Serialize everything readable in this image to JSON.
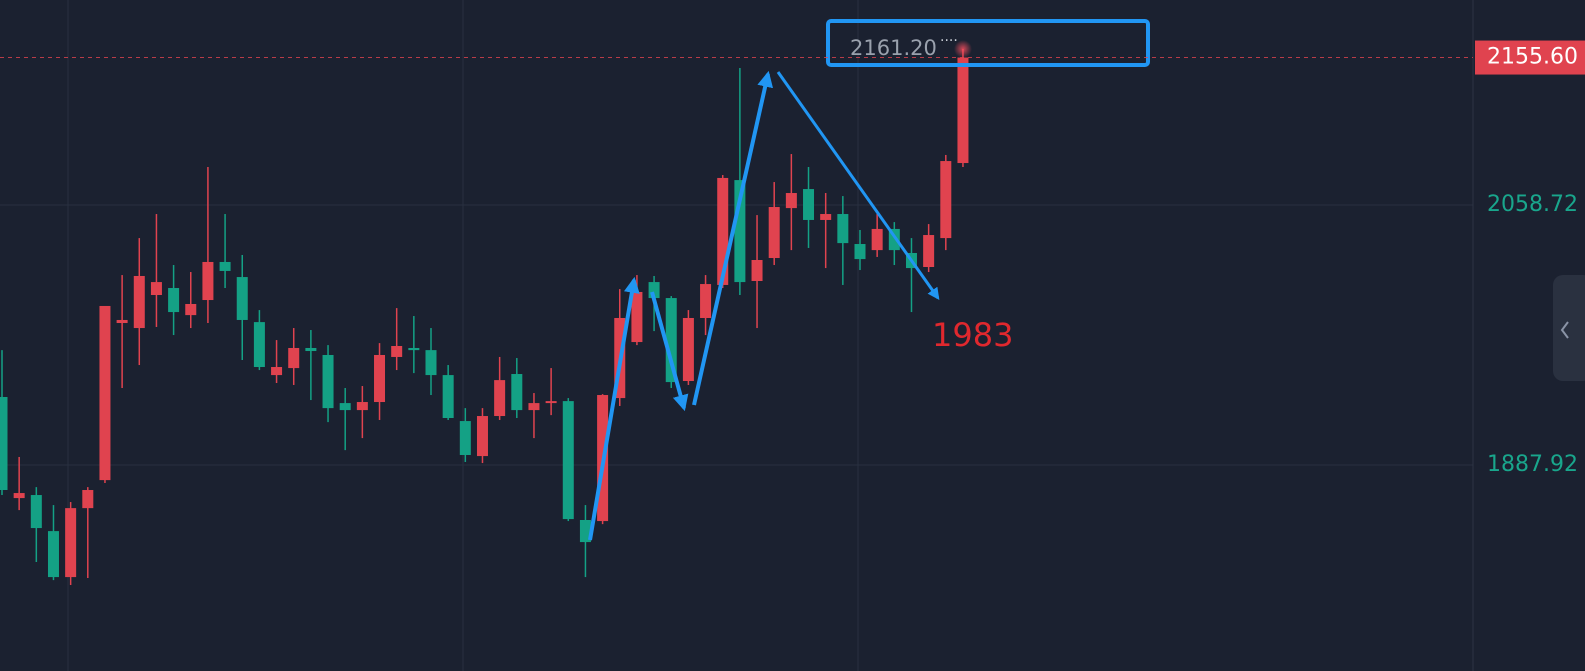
{
  "chart_data": {
    "type": "candlestick",
    "ylim": [
      1752.6,
      2193.4
    ],
    "yticks": [
      1887.92,
      2058.72
    ],
    "grid": true,
    "up_color": "#e0434f",
    "down_color": "#14a185",
    "tick_color": "#19a68c",
    "last_price": {
      "value": 2155.6,
      "label": "2155.60"
    },
    "high_label": {
      "value": 2161.2,
      "label": "2161.20"
    },
    "annotation": "1983",
    "open": [
      1932.6,
      1866.2,
      1868.2,
      1844.5,
      1814.3,
      1859.6,
      1878.0,
      1981.2,
      1977.9,
      1999.6,
      2004.2,
      1986.4,
      1996.3,
      2021.3,
      2011.4,
      1981.8,
      1947.0,
      1951.6,
      1964.8,
      1960.2,
      1928.6,
      1924.0,
      1929.3,
      1958.9,
      1964.8,
      1963.4,
      1947.0,
      1916.8,
      1893.8,
      1920.1,
      1947.7,
      1924.0,
      1928.6,
      1929.9,
      1851.8,
      1851.1,
      1931.9,
      1968.7,
      2008.1,
      1997.6,
      1943.1,
      1984.5,
      2006.2,
      2075.1,
      2008.8,
      2023.9,
      2056.7,
      2069.2,
      2048.9,
      2052.8,
      2033.1,
      2029.1,
      2043.0,
      2027.2,
      2018.0,
      2037.0,
      2086.3
    ],
    "high": [
      1963.4,
      1893.2,
      1873.4,
      1861.6,
      1863.6,
      1873.4,
      1992.4,
      2012.7,
      2037.0,
      2052.8,
      2019.3,
      2014.7,
      2083.7,
      2052.8,
      2025.9,
      1989.7,
      1970.0,
      1977.9,
      1976.6,
      1966.7,
      1938.5,
      1939.8,
      1968.0,
      1991.0,
      1985.8,
      1977.9,
      1953.6,
      1925.3,
      1925.3,
      1958.9,
      1958.2,
      1935.2,
      1951.6,
      1931.9,
      1861.6,
      1934.5,
      2003.5,
      2012.7,
      2012.1,
      1998.9,
      1989.7,
      2012.7,
      2078.4,
      2148.7,
      2052.1,
      2073.8,
      2092.2,
      2083.7,
      2066.6,
      2064.6,
      2042.3,
      2052.8,
      2047.5,
      2037.0,
      2046.2,
      2091.6,
      2161.2
    ],
    "low": [
      1868.2,
      1858.3,
      1824.2,
      1812.3,
      1809.1,
      1813.7,
      1876.1,
      1938.5,
      1953.6,
      1978.6,
      1973.3,
      1977.9,
      1981.2,
      2004.2,
      1956.9,
      1950.3,
      1941.8,
      1940.5,
      1930.6,
      1916.1,
      1897.7,
      1905.6,
      1917.5,
      1950.3,
      1948.3,
      1933.9,
      1917.5,
      1889.9,
      1889.2,
      1917.5,
      1918.8,
      1905.6,
      1920.7,
      1851.1,
      1814.3,
      1849.1,
      1926.7,
      1966.7,
      1975.9,
      1938.5,
      1940.5,
      1973.3,
      2004.2,
      1999.6,
      1977.9,
      2019.3,
      2029.1,
      2030.5,
      2017.3,
      2006.2,
      2016.0,
      2024.6,
      2019.3,
      1988.4,
      2014.7,
      2029.1,
      2083.7
    ],
    "close": [
      1871.5,
      1869.5,
      1846.5,
      1814.3,
      1859.6,
      1871.5,
      1992.4,
      1983.2,
      2012.1,
      2008.1,
      1988.4,
      1993.7,
      2021.3,
      2015.4,
      1983.2,
      1952.3,
      1952.3,
      1964.8,
      1962.8,
      1925.3,
      1924.0,
      1929.3,
      1960.2,
      1966.1,
      1963.4,
      1947.0,
      1918.8,
      1894.5,
      1920.1,
      1943.7,
      1924.0,
      1928.6,
      1929.9,
      1852.4,
      1837.3,
      1933.9,
      1984.5,
      2001.6,
      1997.6,
      1942.4,
      1984.5,
      2006.8,
      2076.5,
      2008.1,
      2022.6,
      2057.4,
      2066.6,
      2048.9,
      2052.8,
      2033.7,
      2023.2,
      2043.0,
      2029.1,
      2017.3,
      2039.0,
      2087.6,
      2155.6
    ]
  }
}
